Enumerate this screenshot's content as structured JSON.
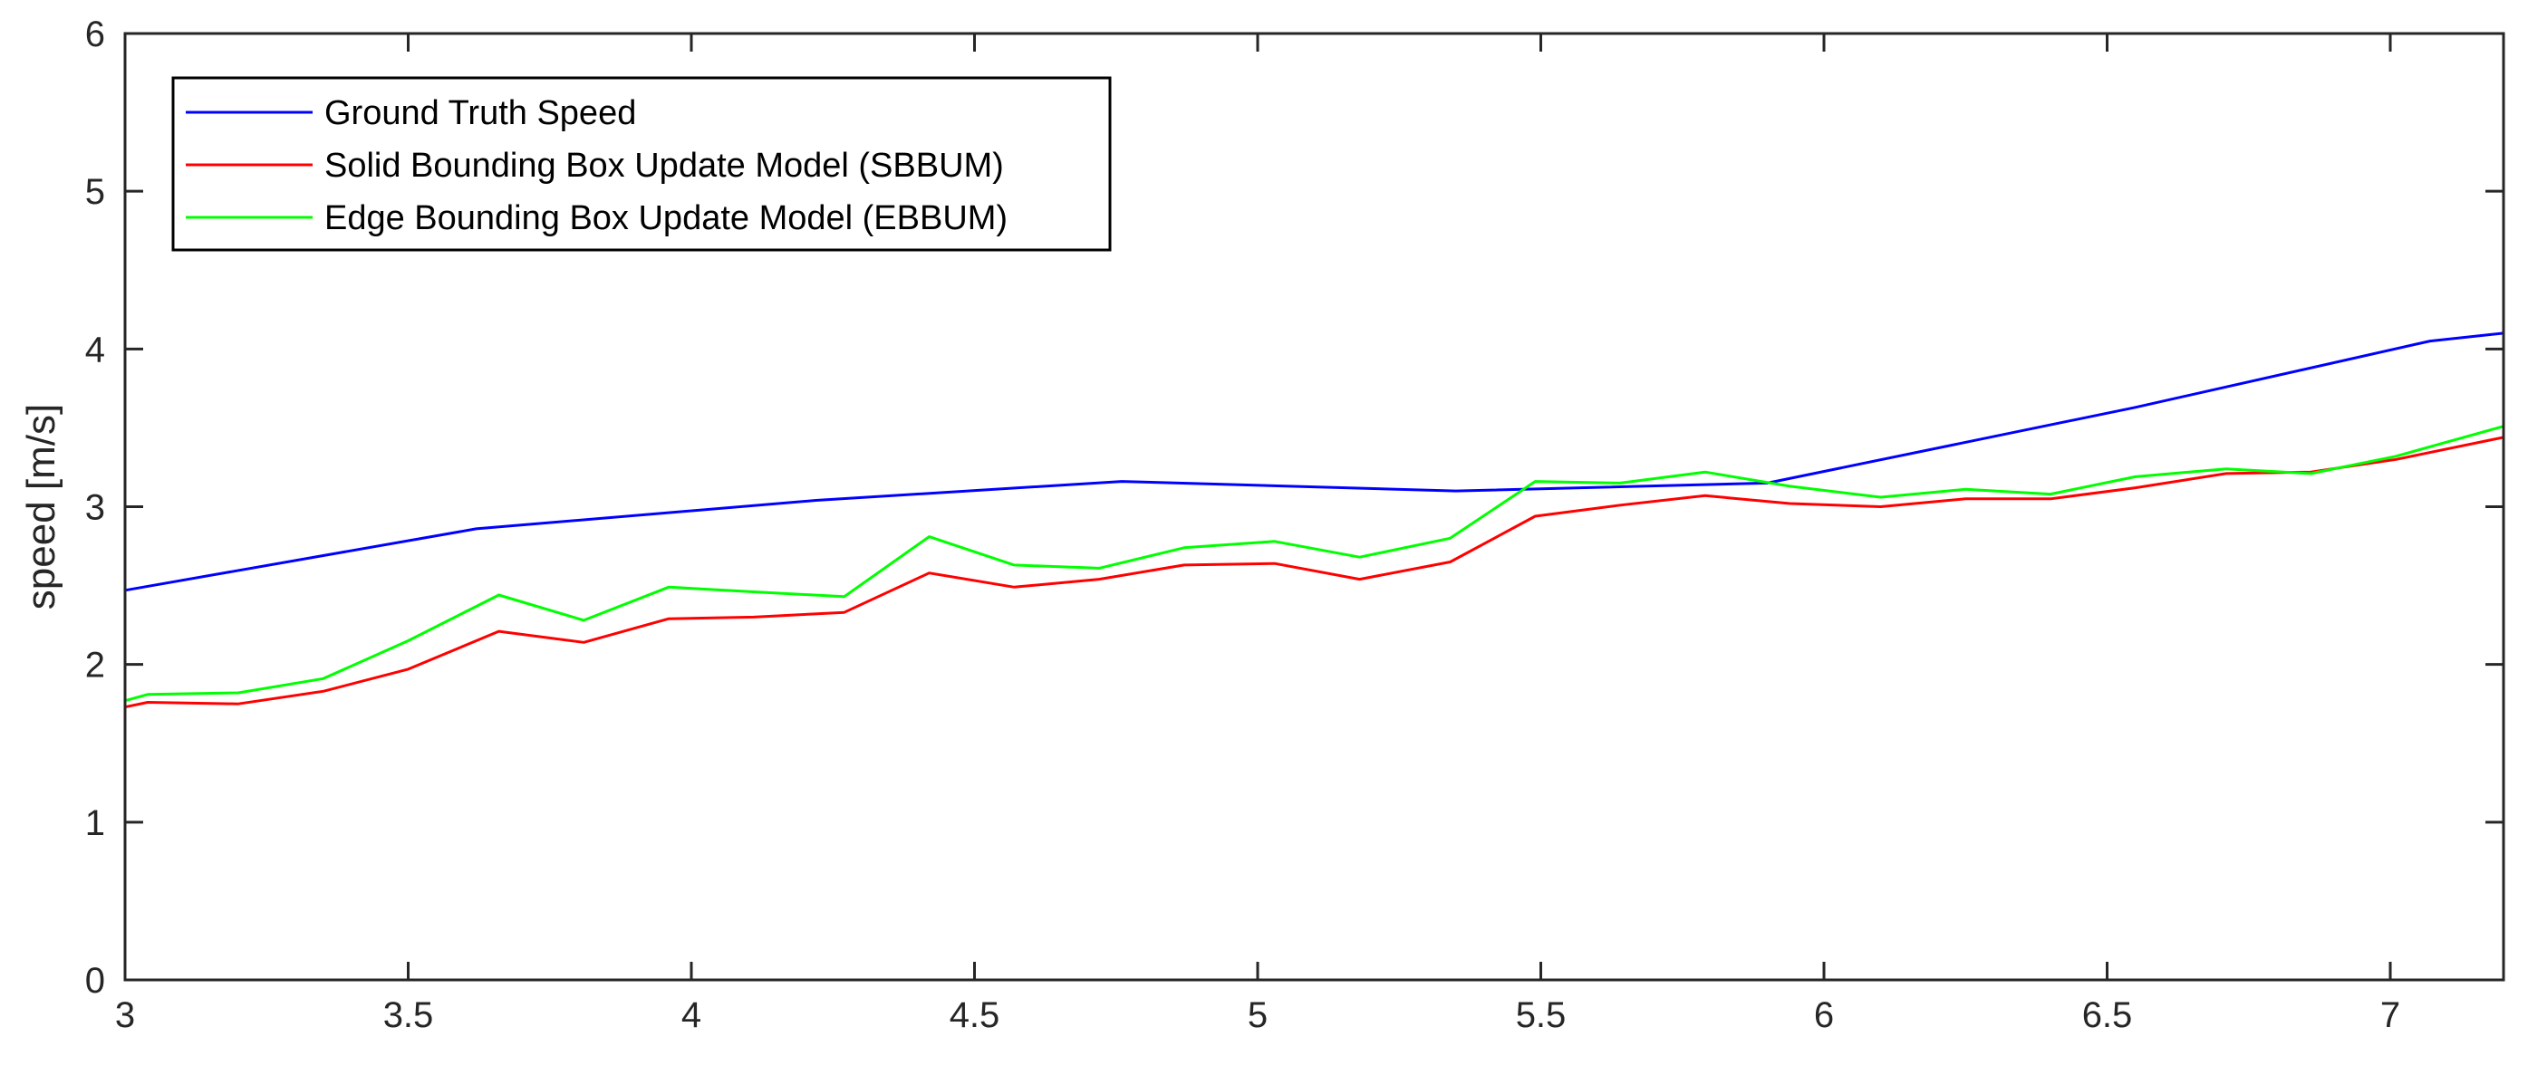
{
  "chart_data": {
    "type": "line",
    "title": "",
    "xlabel": "",
    "ylabel": "speed [m/s]",
    "xlim": [
      3,
      7.2
    ],
    "ylim": [
      0,
      6
    ],
    "xticks": [
      3,
      3.5,
      4,
      4.5,
      5,
      5.5,
      6,
      6.5,
      7
    ],
    "xtick_labels": [
      "3",
      "3.5",
      "4",
      "4.5",
      "5",
      "5.5",
      "6",
      "6.5",
      "7"
    ],
    "yticks": [
      0,
      1,
      2,
      3,
      4,
      5,
      6
    ],
    "ytick_labels": [
      "0",
      "1",
      "2",
      "3",
      "4",
      "5",
      "6"
    ],
    "grid": false,
    "legend_position": "top-left",
    "series": [
      {
        "name": "Ground Truth Speed",
        "color": "#0000ff",
        "x": [
          3.0,
          3.62,
          4.22,
          4.76,
          5.35,
          5.9,
          6.55,
          7.07,
          7.2
        ],
        "y": [
          2.47,
          2.86,
          3.04,
          3.16,
          3.1,
          3.15,
          3.63,
          4.05,
          4.1
        ]
      },
      {
        "name": "Solid Bounding Box Update Model (SBBUM)",
        "color": "#ff0000",
        "x": [
          3.0,
          3.04,
          3.2,
          3.35,
          3.5,
          3.66,
          3.81,
          3.96,
          4.11,
          4.27,
          4.42,
          4.57,
          4.72,
          4.87,
          5.03,
          5.18,
          5.34,
          5.49,
          5.64,
          5.79,
          5.94,
          6.1,
          6.25,
          6.4,
          6.55,
          6.71,
          6.86,
          7.01,
          7.2
        ],
        "y": [
          1.73,
          1.76,
          1.75,
          1.83,
          1.97,
          2.21,
          2.14,
          2.29,
          2.3,
          2.33,
          2.58,
          2.49,
          2.54,
          2.63,
          2.64,
          2.54,
          2.65,
          2.94,
          3.01,
          3.07,
          3.02,
          3.0,
          3.05,
          3.05,
          3.12,
          3.21,
          3.22,
          3.3,
          3.44
        ]
      },
      {
        "name": "Edge Bounding Box Update Model (EBBUM)",
        "color": "#00ff00",
        "x": [
          3.0,
          3.04,
          3.2,
          3.35,
          3.5,
          3.66,
          3.81,
          3.96,
          4.11,
          4.27,
          4.42,
          4.57,
          4.72,
          4.87,
          5.03,
          5.18,
          5.34,
          5.49,
          5.64,
          5.79,
          5.94,
          6.1,
          6.25,
          6.4,
          6.55,
          6.71,
          6.86,
          7.01,
          7.2
        ],
        "y": [
          1.77,
          1.81,
          1.82,
          1.91,
          2.15,
          2.44,
          2.28,
          2.49,
          2.46,
          2.43,
          2.81,
          2.63,
          2.61,
          2.74,
          2.78,
          2.68,
          2.8,
          3.16,
          3.15,
          3.22,
          3.13,
          3.06,
          3.11,
          3.08,
          3.19,
          3.24,
          3.21,
          3.32,
          3.51
        ]
      }
    ]
  }
}
